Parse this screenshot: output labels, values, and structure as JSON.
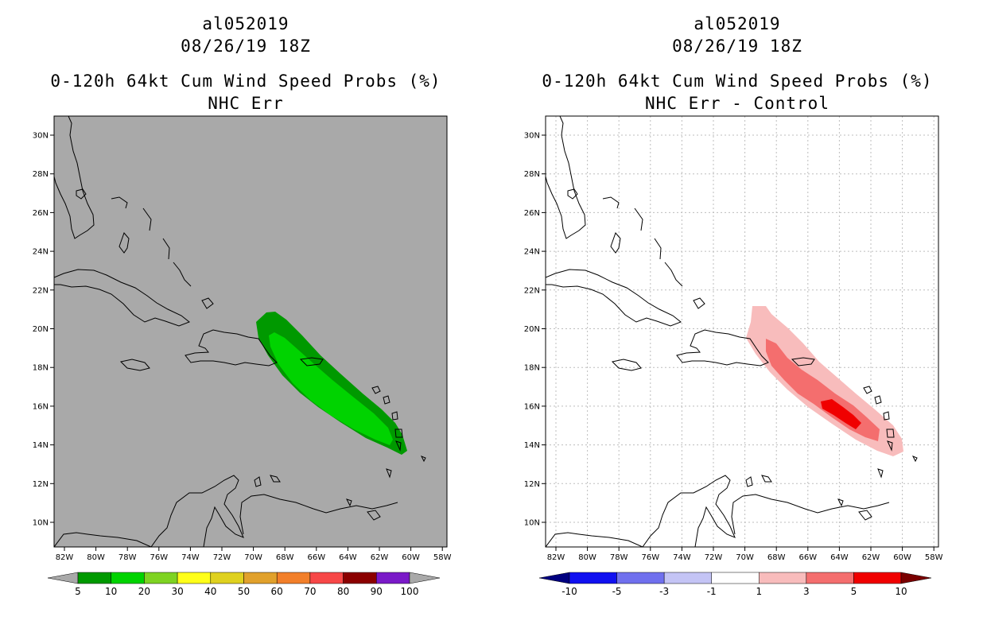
{
  "left": {
    "storm_id": "al052019",
    "datetime": "08/26/19 18Z",
    "product": "0-120h 64kt Cum Wind Speed Probs (%)",
    "subtitle": "NHC Err",
    "background": "#a9a9a9",
    "colorbar": {
      "labels": [
        "5",
        "10",
        "20",
        "30",
        "40",
        "50",
        "60",
        "70",
        "80",
        "90",
        "100"
      ],
      "colors": [
        "#a9a9a9",
        "#009900",
        "#00d300",
        "#7ed322",
        "#ffff1a",
        "#dfd11f",
        "#e1a12c",
        "#f27f2a",
        "#f74747",
        "#8b0000",
        "#7a1ac8",
        "#a9a9a9"
      ]
    }
  },
  "right": {
    "storm_id": "al052019",
    "datetime": "08/26/19 18Z",
    "product": "0-120h 64kt Cum Wind Speed Probs (%)",
    "subtitle": "NHC Err - Control",
    "background": "#ffffff",
    "colorbar": {
      "labels": [
        "-10",
        "-5",
        "-3",
        "-1",
        "1",
        "3",
        "5",
        "10"
      ],
      "colors": [
        "#000080",
        "#1010f0",
        "#7070ee",
        "#c4c4f5",
        "#ffffff",
        "#f8bcbc",
        "#f46e6e",
        "#f00000",
        "#7a0000"
      ]
    }
  },
  "axes": {
    "lat_labels": [
      "30N",
      "28N",
      "26N",
      "24N",
      "22N",
      "20N",
      "18N",
      "16N",
      "14N",
      "12N",
      "10N"
    ],
    "lon_labels": [
      "82W",
      "80W",
      "78W",
      "76W",
      "74W",
      "72W",
      "70W",
      "68W",
      "66W",
      "64W",
      "62W",
      "60W",
      "58W"
    ]
  },
  "colors": {
    "coast": "#000000",
    "grid": "#bdbdbd"
  }
}
